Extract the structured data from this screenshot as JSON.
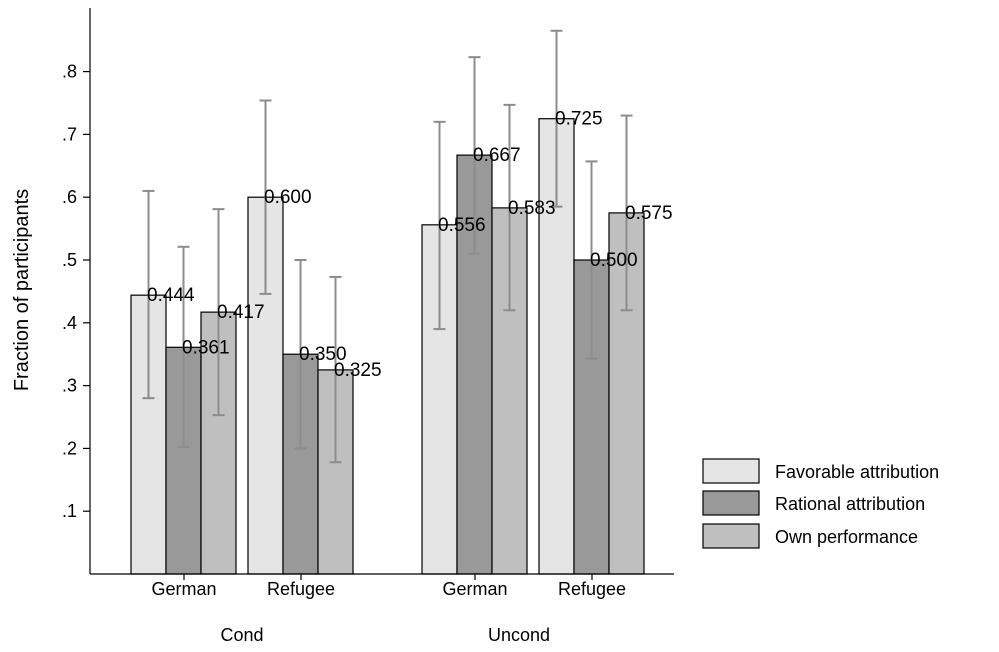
{
  "chart_data": {
    "type": "bar",
    "ylabel": "Fraction of participants",
    "xlabel": "",
    "ylim": [
      0,
      0.9
    ],
    "yticks": [
      ".1",
      ".2",
      ".3",
      ".4",
      ".5",
      ".6",
      ".7",
      ".8"
    ],
    "grid": false,
    "legend_position": "right",
    "groups": [
      {
        "label": "Cond",
        "subgroups": [
          {
            "label": "German",
            "values": [
              0.444,
              0.361,
              0.417
            ],
            "value_labels": [
              "0.444",
              "0.361",
              "0.417"
            ],
            "ci": [
              [
                0.28,
                0.61
              ],
              [
                0.202,
                0.521
              ],
              [
                0.253,
                0.581
              ]
            ]
          },
          {
            "label": "Refugee",
            "values": [
              0.6,
              0.35,
              0.325
            ],
            "value_labels": [
              "0.600",
              "0.350",
              "0.325"
            ],
            "ci": [
              [
                0.446,
                0.754
              ],
              [
                0.2,
                0.5
              ],
              [
                0.178,
                0.473
              ]
            ]
          }
        ]
      },
      {
        "label": "Uncond",
        "subgroups": [
          {
            "label": "German",
            "values": [
              0.556,
              0.667,
              0.583
            ],
            "value_labels": [
              "0.556",
              "0.667",
              "0.583"
            ],
            "ci": [
              [
                0.39,
                0.72
              ],
              [
                0.51,
                0.823
              ],
              [
                0.42,
                0.747
              ]
            ]
          },
          {
            "label": "Refugee",
            "values": [
              0.725,
              0.5,
              0.575
            ],
            "value_labels": [
              "0.725",
              "0.500",
              "0.575"
            ],
            "ci": [
              [
                0.585,
                0.865
              ],
              [
                0.343,
                0.657
              ],
              [
                0.42,
                0.73
              ]
            ]
          }
        ]
      }
    ],
    "series": [
      {
        "name": "Favorable attribution",
        "color": "#e5e5e5"
      },
      {
        "name": "Rational attribution",
        "color": "#999999"
      },
      {
        "name": "Own performance",
        "color": "#bfbfbf"
      }
    ],
    "error_bar_color": "#8c8c8c"
  }
}
